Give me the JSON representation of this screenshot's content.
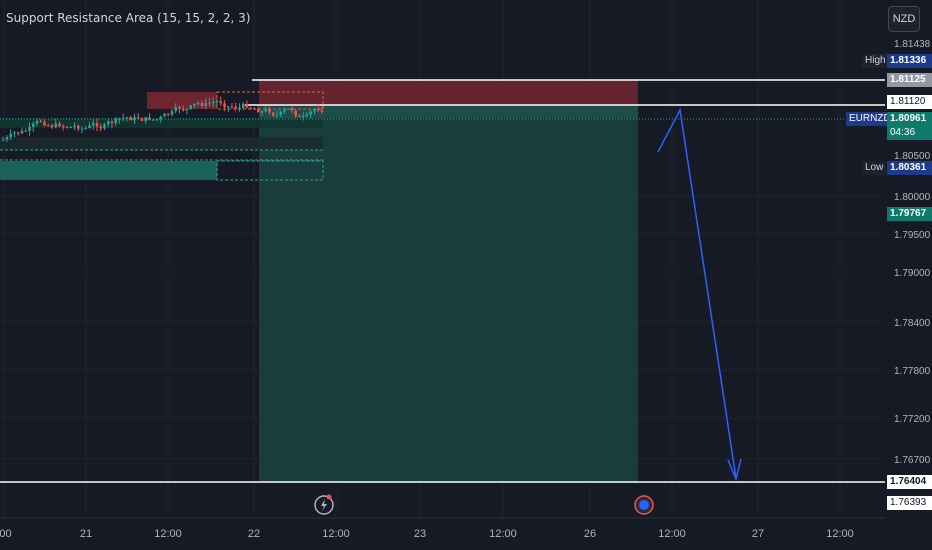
{
  "indicator": {
    "title": "Support Resistance Area (15, 15, 2, 2, 3)"
  },
  "currency_button": {
    "label": "NZD"
  },
  "chart_data": {
    "type": "line",
    "symbol": "EURNZD",
    "y_ticks": [
      "1.81438",
      "1.81336",
      "1.81125",
      "1.81120",
      "1.80500",
      "1.80000",
      "1.79500",
      "1.79000",
      "1.78400",
      "1.77800",
      "1.77200",
      "1.76700",
      "1.76393"
    ],
    "x_ticks": [
      ":00",
      "21",
      "12:00",
      "22",
      "12:00",
      "23",
      "12:00",
      "26",
      "12:00",
      "27",
      "12:00"
    ],
    "price_tags": {
      "high_label": "High",
      "high_value": "1.81336",
      "level_1": "1.81125",
      "level_2": "1.81120",
      "symbol_label": "EURNZD",
      "current_value": "1.80961",
      "countdown": "04:36",
      "low_label": "Low",
      "low_value": "1.80361",
      "entry_value": "1.79767",
      "target_value": "1.76404",
      "bottom_value": "1.76393"
    },
    "horizontal_levels": [
      1.81125,
      1.8112,
      1.76404
    ],
    "projection_path": [
      {
        "x": "26 18:00",
        "y": 1.806
      },
      {
        "x": "27 00:00",
        "y": 1.8113
      },
      {
        "x": "27 06:00",
        "y": 1.7665
      }
    ],
    "colors": {
      "background": "#161a25",
      "up": "#26a69a",
      "down": "#ef5350",
      "arrow": "#2962ff",
      "level": "#ffffff",
      "zone": "#1a4a44"
    }
  }
}
